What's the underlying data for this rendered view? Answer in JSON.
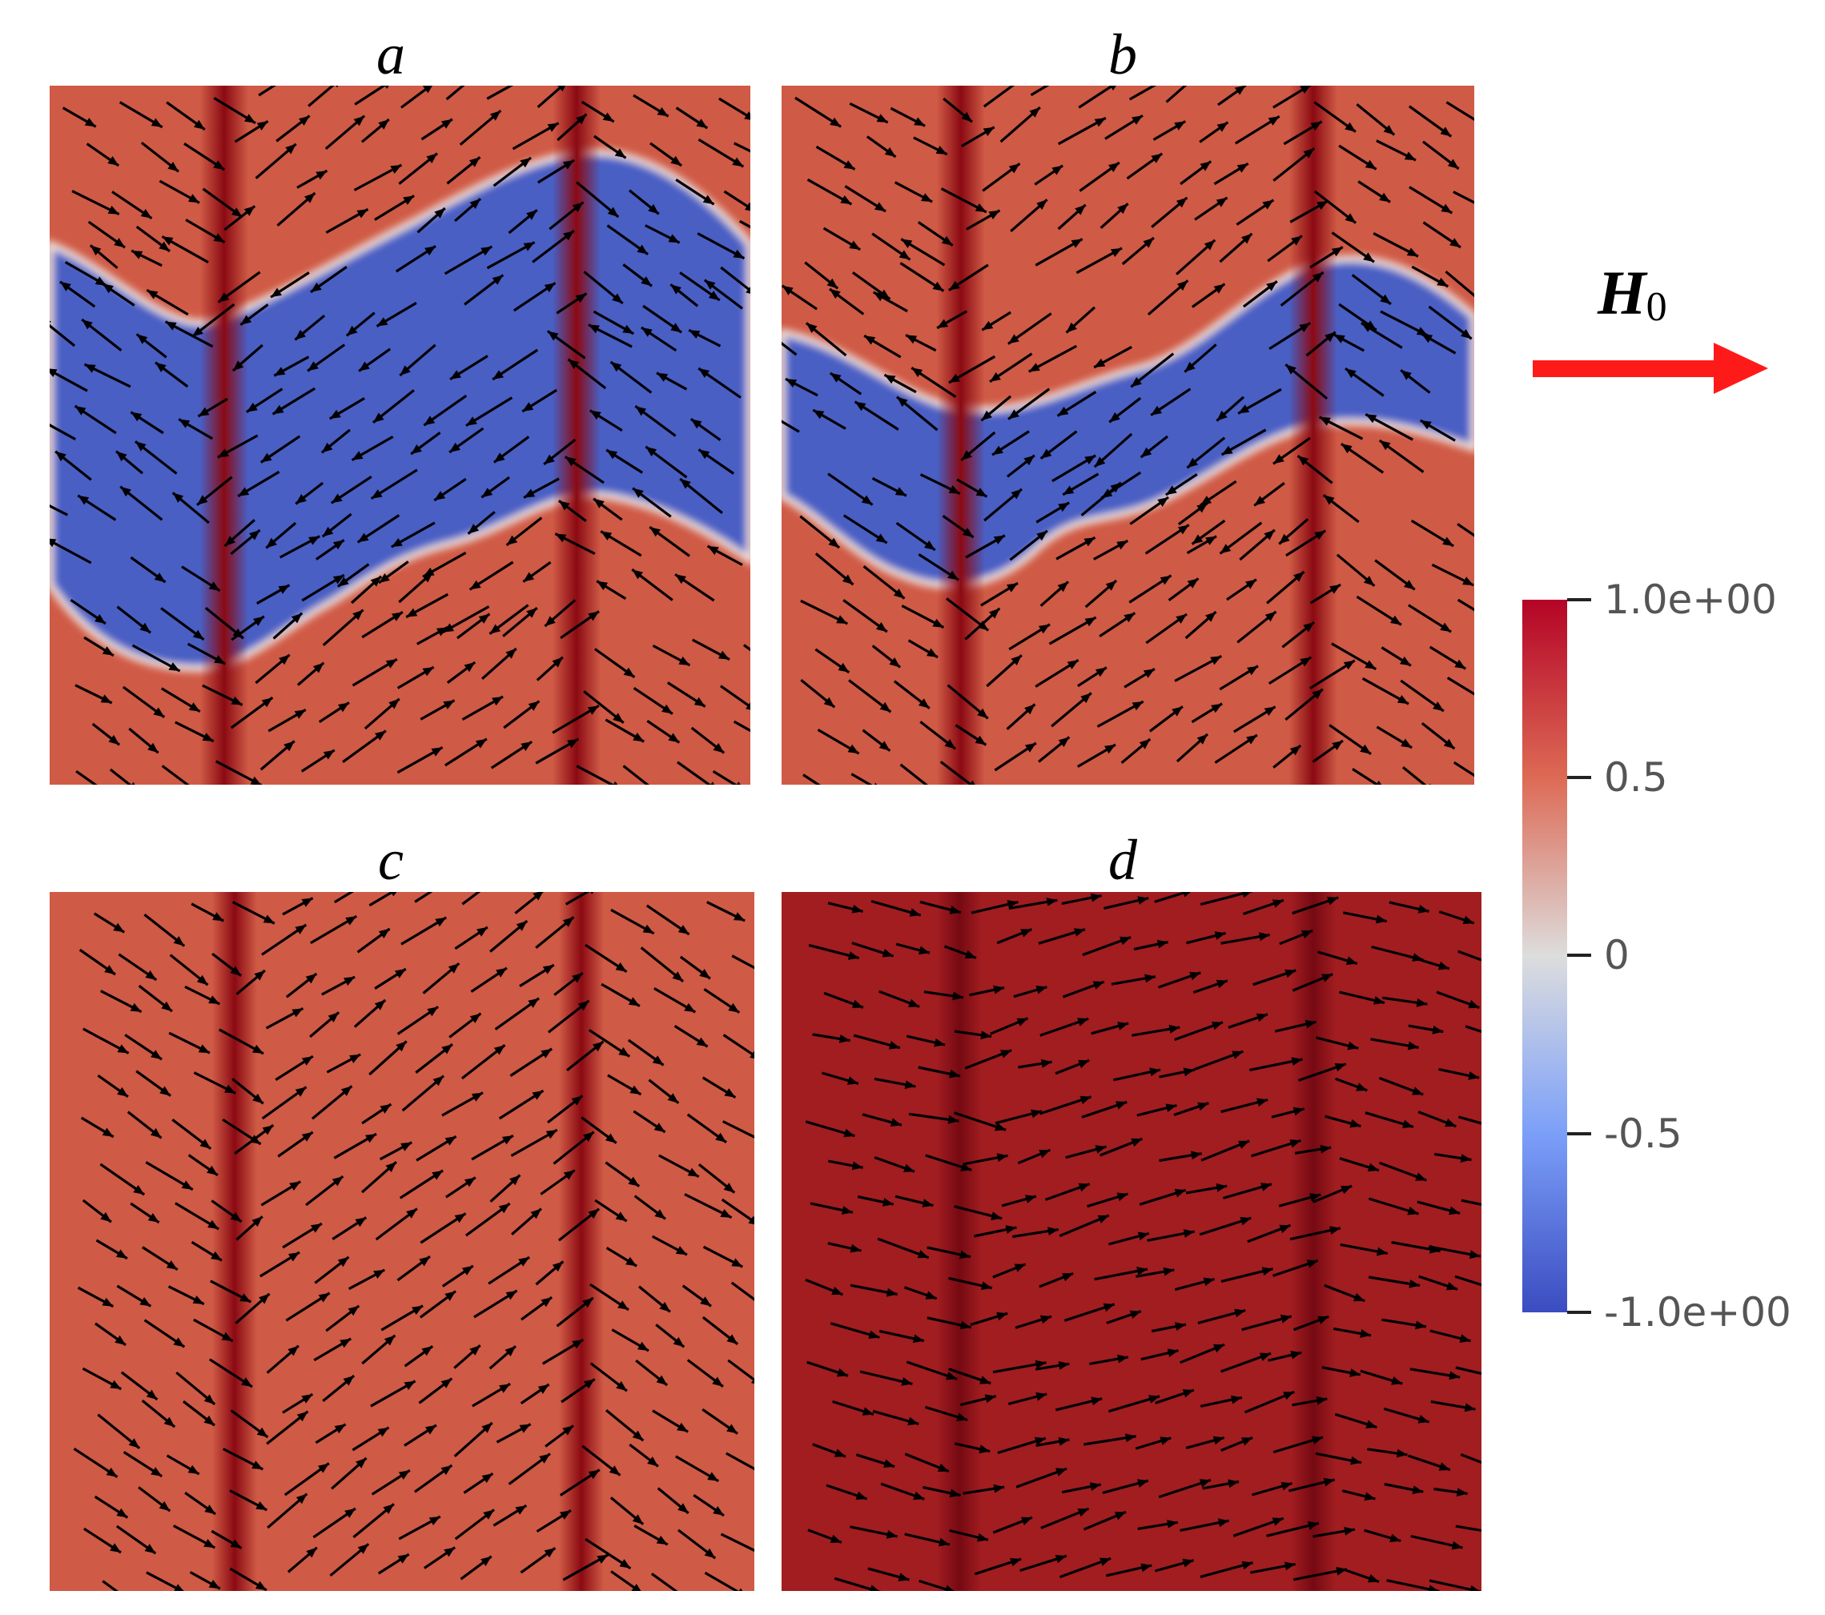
{
  "panels": [
    {
      "id": "a",
      "label": "a",
      "state": "wavy blue domain band"
    },
    {
      "id": "b",
      "label": "b",
      "state": "narrow wavy blue domain band"
    },
    {
      "id": "c",
      "label": "c",
      "state": "uniform red"
    },
    {
      "id": "d",
      "label": "d",
      "state": "uniform dark red"
    }
  ],
  "field_label": {
    "symbol": "H",
    "subscript": "0"
  },
  "colorbar": {
    "ticks": [
      "1.0e+00",
      "0.5",
      "0",
      "-0.5",
      "-1.0e+00"
    ],
    "colors": {
      "max": "#b40426",
      "high": "#dd6a55",
      "mid": "#dddddd",
      "low": "#7b9ff9",
      "min": "#3b4cc0"
    }
  },
  "colors": {
    "panel_red": "#cf5a45",
    "panel_dark_red": "#a11d20",
    "stripe": "#8b0a13",
    "domain_blue": "#4a5ec4",
    "arrow": "#000000",
    "field_arrow": "#ff1a1a"
  }
}
